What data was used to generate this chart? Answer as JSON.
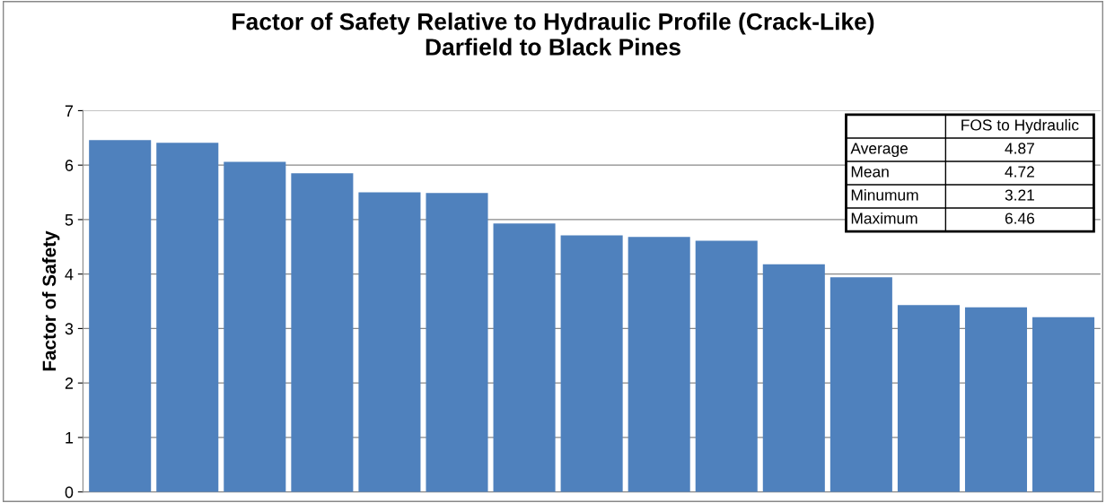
{
  "chart_data": {
    "type": "bar",
    "title": "Factor of Safety Relative to Hydraulic Profile (Crack-Like)\nDarfield to Black Pines",
    "ylabel": "Factor of Safety",
    "categories": [
      null,
      null,
      null,
      null,
      null,
      null,
      null,
      null,
      null,
      null,
      null,
      null,
      null,
      null,
      null
    ],
    "values": [
      6.46,
      6.41,
      6.06,
      5.85,
      5.5,
      5.49,
      4.93,
      4.71,
      4.68,
      4.61,
      4.18,
      3.94,
      3.43,
      3.39,
      3.21
    ],
    "color": "#4f81bd",
    "ylim": [
      0,
      7
    ],
    "yticks": [
      0,
      1,
      2,
      3,
      4,
      5,
      6,
      7
    ],
    "grid": "y",
    "annotations": [
      "FOS to Hydraulic",
      "Average",
      "4.87",
      "Mean",
      "4.72",
      "Minumum",
      "3.21",
      "Maximum",
      "6.46"
    ]
  }
}
